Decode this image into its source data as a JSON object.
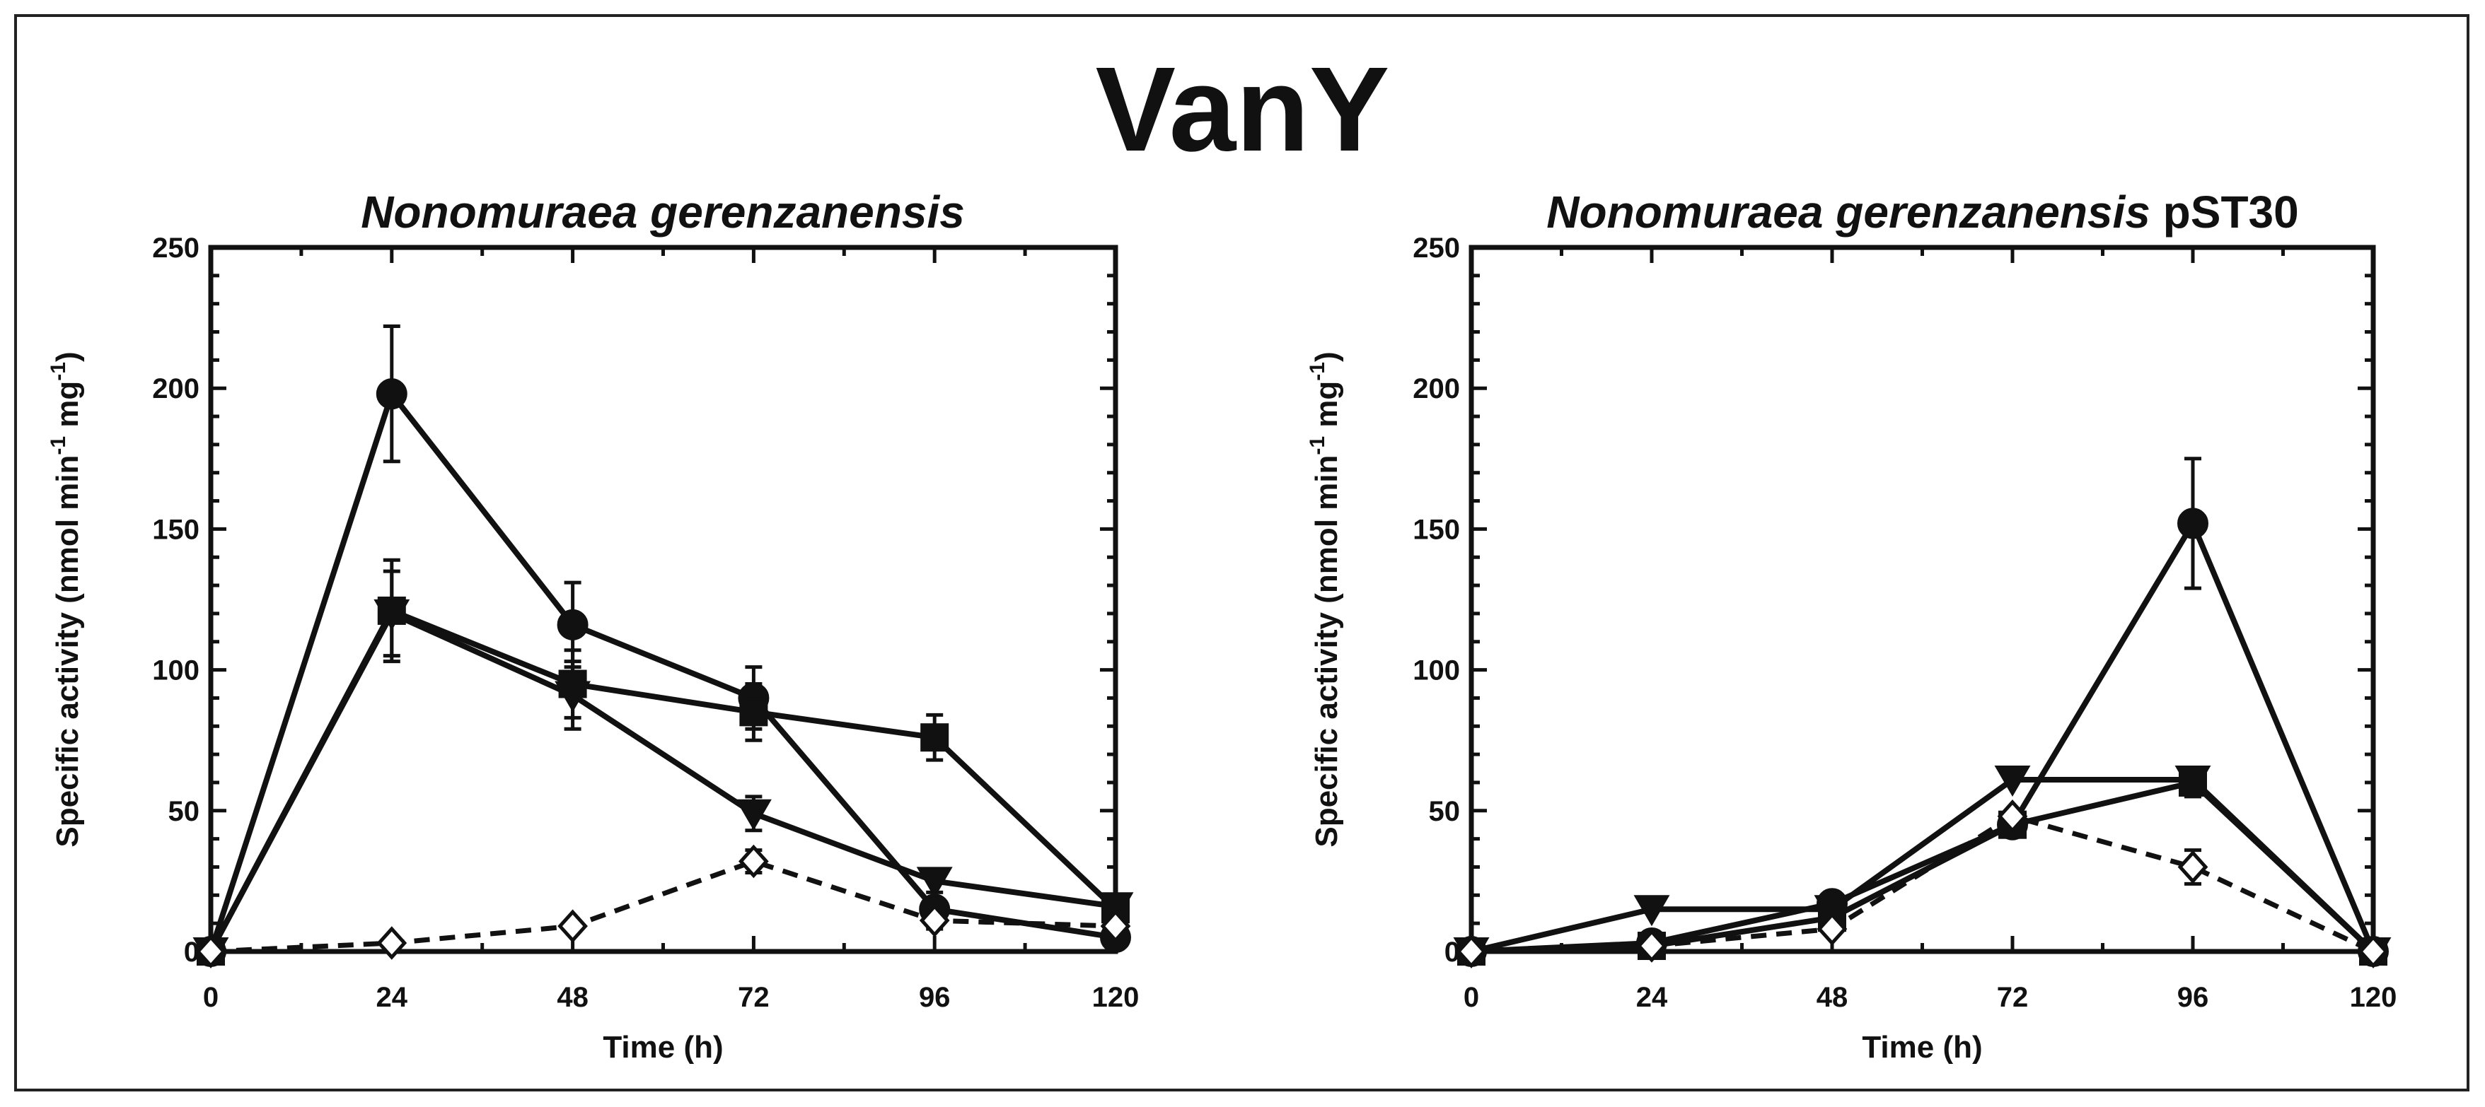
{
  "figure_title": "VanY",
  "chart_data": [
    {
      "type": "line",
      "title": "Nonomuraea gerenzanensis",
      "title_suffix": "",
      "xlabel": "Time (h)",
      "ylabel": "Specific activity (nmol min⁻¹ mg⁻¹)",
      "ylabel_parts": {
        "main": "Specific activity (nmol min",
        "exp1": "-1",
        "mid": " mg",
        "exp2": "-1",
        "end": ")"
      },
      "x": [
        0,
        24,
        48,
        72,
        96,
        120
      ],
      "xlim": [
        0,
        120
      ],
      "ylim": [
        0,
        250
      ],
      "xticks": [
        0,
        24,
        48,
        72,
        96,
        120
      ],
      "yticks": [
        0,
        50,
        100,
        150,
        200,
        250
      ],
      "series": [
        {
          "name": "filled circles",
          "marker": "circle",
          "filled": true,
          "dashed": false,
          "values": [
            0,
            198,
            116,
            90,
            15,
            5
          ],
          "errors": [
            0,
            24,
            15,
            11,
            0,
            0
          ]
        },
        {
          "name": "filled squares",
          "marker": "square",
          "filled": true,
          "dashed": false,
          "values": [
            0,
            121,
            95,
            85,
            76,
            15
          ],
          "errors": [
            0,
            18,
            12,
            10,
            8,
            0
          ]
        },
        {
          "name": "filled triangles",
          "marker": "triangle-down",
          "filled": true,
          "dashed": false,
          "values": [
            0,
            120,
            91,
            49,
            25,
            16
          ],
          "errors": [
            0,
            15,
            12,
            6,
            4,
            0
          ]
        },
        {
          "name": "open diamonds",
          "marker": "diamond",
          "filled": false,
          "dashed": true,
          "values": [
            0,
            3,
            9,
            32,
            11,
            9
          ],
          "errors": [
            0,
            0,
            0,
            4,
            3,
            0
          ]
        }
      ]
    },
    {
      "type": "line",
      "title": "Nonomuraea gerenzanensis",
      "title_suffix": "pST30",
      "xlabel": "Time (h)",
      "ylabel": "Specific activity (nmol min⁻¹ mg⁻¹)",
      "ylabel_parts": {
        "main": "Specific activity (nmol min",
        "exp1": "-1",
        "mid": " mg",
        "exp2": "-1",
        "end": ")"
      },
      "x": [
        0,
        24,
        48,
        72,
        96,
        120
      ],
      "xlim": [
        0,
        120
      ],
      "ylim": [
        0,
        250
      ],
      "xticks": [
        0,
        24,
        48,
        72,
        96,
        120
      ],
      "yticks": [
        0,
        50,
        100,
        150,
        200,
        250
      ],
      "series": [
        {
          "name": "filled circles",
          "marker": "circle",
          "filled": true,
          "dashed": false,
          "values": [
            0,
            3,
            17,
            45,
            152,
            0
          ],
          "errors": [
            0,
            0,
            0,
            4,
            23,
            0
          ]
        },
        {
          "name": "filled squares",
          "marker": "square",
          "filled": true,
          "dashed": false,
          "values": [
            0,
            2,
            12,
            45,
            60,
            0
          ],
          "errors": [
            0,
            0,
            0,
            4,
            5,
            0
          ]
        },
        {
          "name": "filled triangles",
          "marker": "triangle-down",
          "filled": true,
          "dashed": false,
          "values": [
            0,
            15,
            15,
            61,
            61,
            0
          ],
          "errors": [
            0,
            0,
            0,
            0,
            4,
            0
          ]
        },
        {
          "name": "open diamonds",
          "marker": "diamond",
          "filled": false,
          "dashed": true,
          "values": [
            0,
            2,
            8,
            48,
            30,
            0
          ],
          "errors": [
            0,
            0,
            0,
            0,
            6,
            0
          ]
        }
      ]
    }
  ]
}
